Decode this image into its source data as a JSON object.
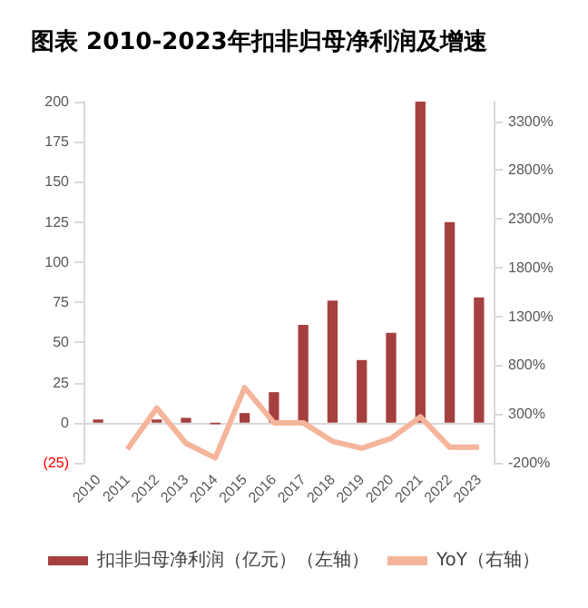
{
  "chart_data": {
    "type": "bar",
    "title": "图表 2010-2023年扣非归母净利润及增速",
    "categories": [
      "2010",
      "2011",
      "2012",
      "2013",
      "2014",
      "2015",
      "2016",
      "2017",
      "2018",
      "2019",
      "2020",
      "2021",
      "2022",
      "2023"
    ],
    "series": [
      {
        "name": "扣非归母净利润（亿元）（左轴）",
        "color": "#a5403f",
        "values": [
          2,
          0,
          2,
          3,
          -1,
          6,
          19,
          61,
          76,
          39,
          56,
          200,
          125,
          78
        ]
      },
      {
        "name": "YoY（右轴）",
        "type": "line",
        "axis": "y2",
        "color": "#f5b59b",
        "values": [
          null,
          -60,
          360,
          0,
          -150,
          570,
          210,
          210,
          20,
          -50,
          50,
          270,
          -40,
          -40
        ]
      }
    ],
    "ylim": [
      -25,
      200
    ],
    "yticks": [
      {
        "value": -25,
        "label": "(25)"
      },
      0,
      25,
      50,
      75,
      100,
      125,
      150,
      175,
      200
    ],
    "y2lim": [
      -200,
      3500
    ],
    "y2ticks": [
      {
        "value": -200,
        "label": "-200%"
      },
      {
        "value": 300,
        "label": "300%"
      },
      {
        "value": 800,
        "label": "800%"
      },
      {
        "value": 1300,
        "label": "1300%"
      },
      {
        "value": 1800,
        "label": "1800%"
      },
      {
        "value": 2300,
        "label": "2300%"
      },
      {
        "value": 2800,
        "label": "2800%"
      },
      {
        "value": 3300,
        "label": "3300%"
      }
    ],
    "legend": "bottom",
    "marker": "none"
  }
}
